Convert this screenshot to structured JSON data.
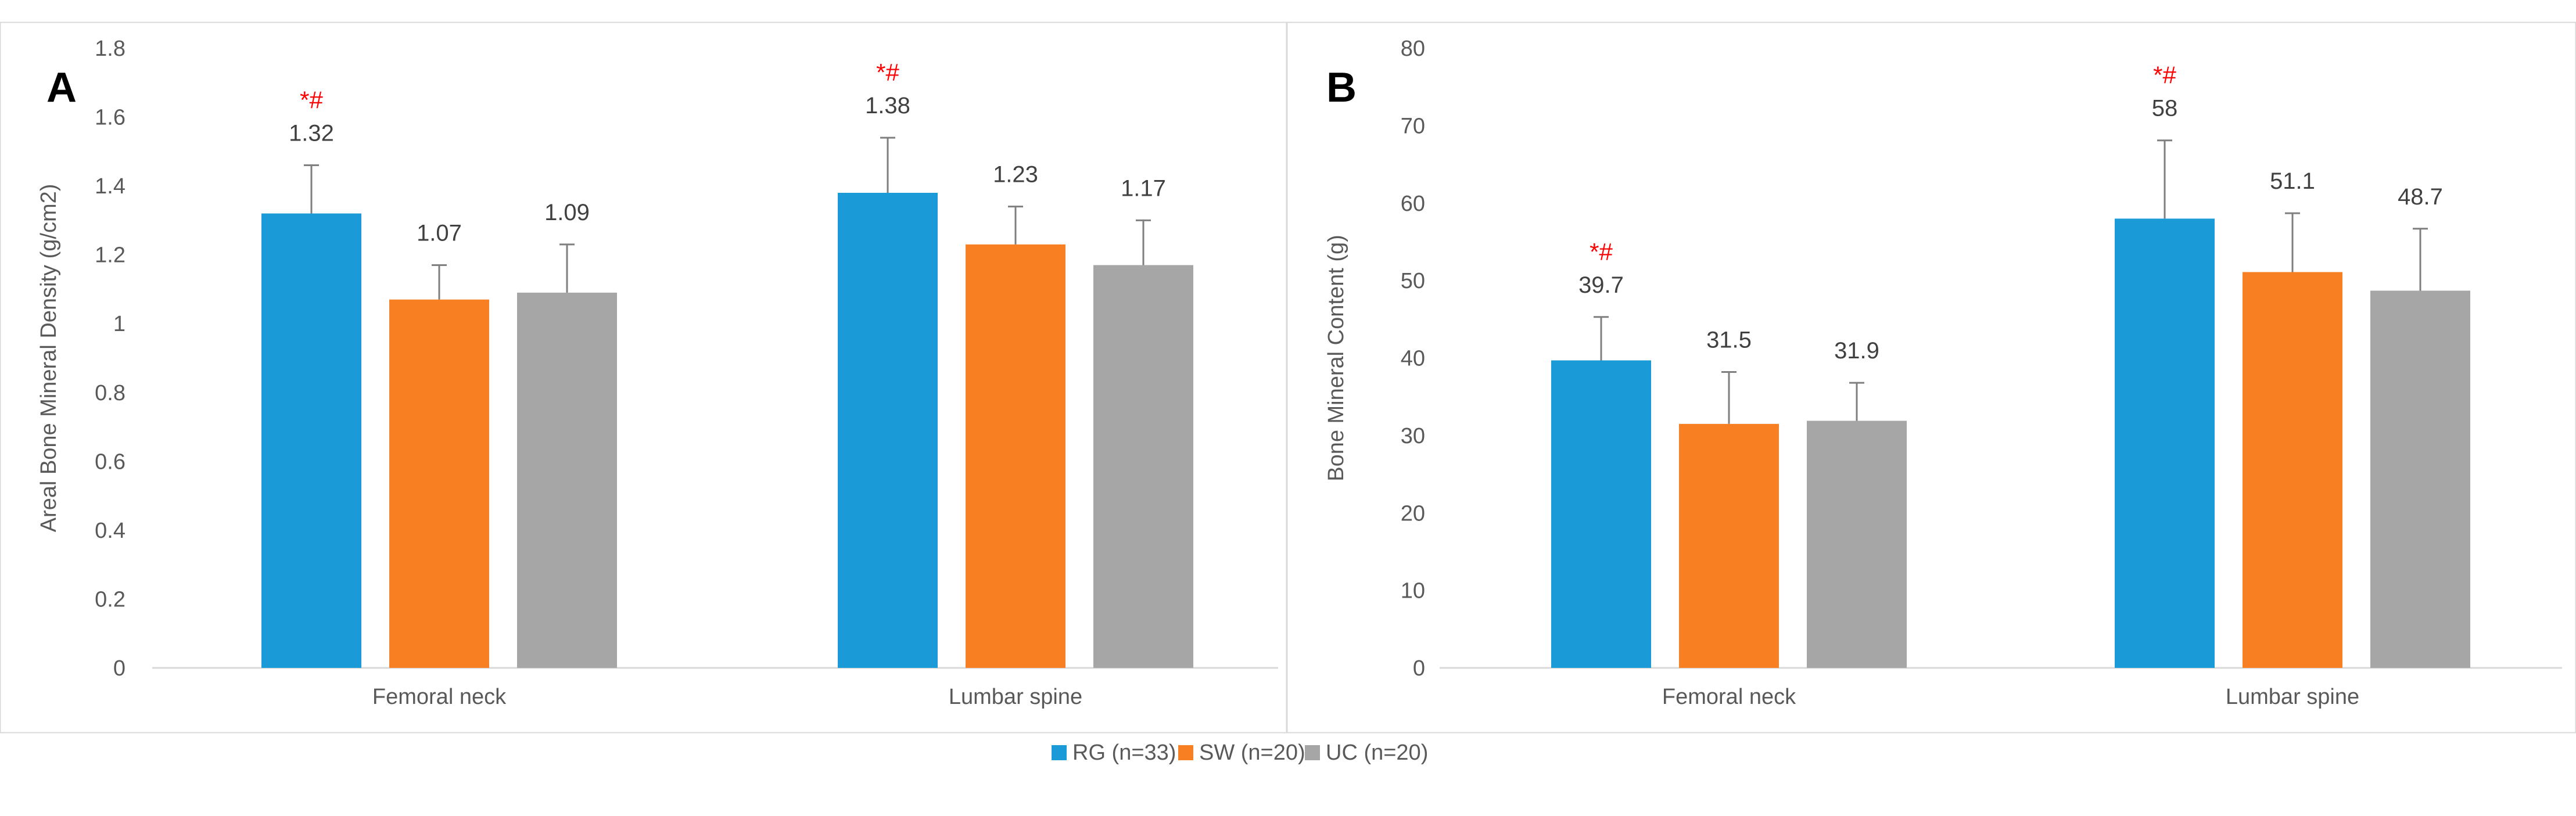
{
  "colors": {
    "rg": "#1a9bd7",
    "sw": "#f97f23",
    "uc": "#a6a6a6",
    "axis": "#d9d9d9",
    "error_bar": "#7f7f7f",
    "significance": "#ff0000",
    "frame": "#d9d9d9"
  },
  "legend": {
    "items": [
      {
        "label": "RG (n=33)",
        "color": "#1a9bd7"
      },
      {
        "label": "SW (n=20)",
        "color": "#f97f23"
      },
      {
        "label": "UC (n=20)",
        "color": "#a6a6a6"
      }
    ]
  },
  "chart_data": [
    {
      "type": "bar",
      "panel": "A",
      "title": "",
      "xlabel": "",
      "ylabel": "Areal Bone Mineral Density (g/cm2)",
      "ylim": [
        0,
        1.8
      ],
      "yticks": [
        "0",
        "0.2",
        "0.4",
        "0.6",
        "0.8",
        "1",
        "1.2",
        "1.4",
        "1.6",
        "1.8"
      ],
      "categories": [
        "Femoral neck",
        "Lumbar spine"
      ],
      "series": [
        {
          "name": "RG (n=33)",
          "values": [
            1.32,
            1.38
          ],
          "labels": [
            "1.32",
            "1.38"
          ],
          "errors": [
            0.14,
            0.16
          ],
          "significance": [
            "*#",
            "*#"
          ]
        },
        {
          "name": "SW (n=20)",
          "values": [
            1.07,
            1.23
          ],
          "labels": [
            "1.07",
            "1.23"
          ],
          "errors": [
            0.1,
            0.11
          ],
          "significance": [
            "",
            ""
          ]
        },
        {
          "name": "UC (n=20)",
          "values": [
            1.09,
            1.17
          ],
          "labels": [
            "1.09",
            "1.17"
          ],
          "errors": [
            0.14,
            0.13
          ],
          "significance": [
            "",
            ""
          ]
        }
      ]
    },
    {
      "type": "bar",
      "panel": "B",
      "title": "",
      "xlabel": "",
      "ylabel": "Bone Mineral Content (g)",
      "ylim": [
        0,
        80
      ],
      "yticks": [
        "0",
        "10",
        "20",
        "30",
        "40",
        "50",
        "60",
        "70",
        "80"
      ],
      "categories": [
        "Femoral neck",
        "Lumbar spine"
      ],
      "series": [
        {
          "name": "RG (n=33)",
          "values": [
            39.7,
            58
          ],
          "labels": [
            "39.7",
            "58"
          ],
          "errors": [
            5.6,
            10.1
          ],
          "significance": [
            "*#",
            "*#"
          ]
        },
        {
          "name": "SW (n=20)",
          "values": [
            31.5,
            51.1
          ],
          "labels": [
            "31.5",
            "51.1"
          ],
          "errors": [
            6.7,
            7.6
          ],
          "significance": [
            "",
            ""
          ]
        },
        {
          "name": "UC (n=20)",
          "values": [
            31.9,
            48.7
          ],
          "labels": [
            "31.9",
            "48.7"
          ],
          "errors": [
            4.9,
            8.0
          ],
          "significance": [
            "",
            ""
          ]
        }
      ]
    }
  ]
}
